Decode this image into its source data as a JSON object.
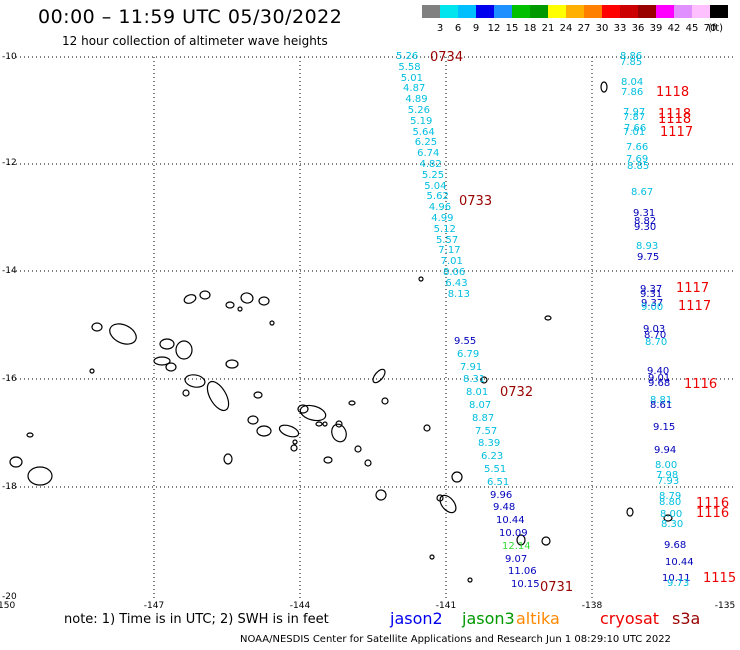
{
  "title": "00:00 – 11:59 UTC 05/30/2022",
  "subtitle": "12 hour collection of altimeter wave heights",
  "legend": {
    "colors": [
      "#808080",
      "#00e5ee",
      "#00bfff",
      "#0000ee",
      "#1e90ff",
      "#00c000",
      "#009900",
      "#ffff00",
      "#ffb000",
      "#ff7f00",
      "#ff0000",
      "#cc0000",
      "#990000",
      "#ff00ff",
      "#e090ff",
      "#ffc0ff",
      "#000000"
    ],
    "labels": [
      "3",
      "6",
      "9",
      "12",
      "15",
      "18",
      "21",
      "24",
      "27",
      "30",
      "33",
      "36",
      "39",
      "42",
      "45",
      "70"
    ],
    "unit": "(ft)"
  },
  "axes": {
    "lat_ticks": [
      "-10",
      "-12",
      "-14",
      "-16",
      "-18",
      "-20"
    ],
    "lon_ticks": [
      "-150",
      "-147",
      "-144",
      "-141",
      "-138",
      "-135"
    ]
  },
  "colors": {
    "cyan": "#00bfdf",
    "blue": "#0000bb",
    "green": "#33dd33",
    "red": "#ee0000",
    "darkred": "#990000"
  },
  "track_0734": [
    "5.26",
    "5.58",
    "5.01",
    "4.87",
    "4.89",
    "5.26",
    "5.19",
    "5.64",
    "6.25",
    "6.74",
    "4.82",
    "5.25",
    "5.04",
    "5.62",
    "4.96",
    "4.99",
    "5.12",
    "5.57",
    "7.17",
    "7.01",
    "8.06",
    "6.43",
    "8.13"
  ],
  "track_0732": [
    "9.55",
    "6.79",
    "7.91",
    "8.31",
    "8.01",
    "8.07",
    "8.87",
    "7.57",
    "8.39",
    "6.23",
    "5.51",
    "6.51",
    "9.96",
    "9.48",
    "10.44",
    "10.09",
    "12.14",
    "9.07",
    "11.06",
    "10.15"
  ],
  "track_1118": [
    "8.86",
    "7.85",
    "8.04",
    "7.86",
    "7.97",
    "7.87",
    "7.01",
    "7.66",
    "7.66",
    "7.69",
    "8.85",
    "8.67",
    "9.31",
    "8.82",
    "9.30",
    "8.93",
    "9.75",
    "9.37",
    "9.31",
    "9.37",
    "9.00",
    "9.03",
    "8.70",
    "8.70",
    "9.40",
    "9.01",
    "9.68",
    "8.81",
    "8.61",
    "9.15",
    "9.94",
    "8.00",
    "7.98",
    "7.93",
    "8.79",
    "8.80",
    "8.00",
    "8.30",
    "9.68",
    "10.44",
    "10.11",
    "9.73"
  ],
  "times": [
    "0734",
    "0733",
    "0732",
    "0731",
    "1118",
    "1118",
    "1118",
    "1117",
    "1117",
    "1117",
    "1116",
    "1116",
    "1116",
    "1115"
  ],
  "note": "note:  1) Time is in UTC;  2) SWH is in feet",
  "satellites": [
    "jason2",
    "jason3",
    "altika",
    "cryosat",
    "s3a"
  ],
  "sat_colors": [
    "#0000ee",
    "#009900",
    "#ff8800",
    "#ee0000",
    "#990000"
  ],
  "credit": "NOAA/NESDIS Center for Satellite Applications and Research   Jun  1 08:29:10 UTC 2022"
}
